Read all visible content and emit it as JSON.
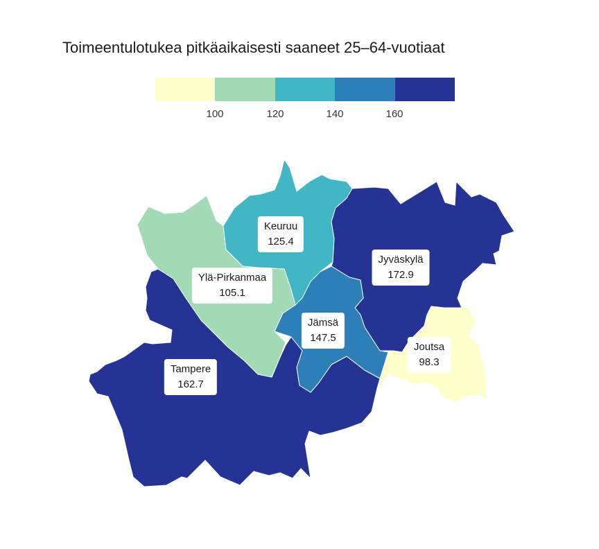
{
  "title": "Toimeentulotukea pitkäaikaisesti saaneet 25–64-vuotiaat",
  "legend": {
    "colors": [
      "#ffffcc",
      "#a1dab4",
      "#41b6c4",
      "#2c7fb8",
      "#253494"
    ],
    "ticks": [
      "100",
      "120",
      "140",
      "160"
    ]
  },
  "regions": [
    {
      "id": "ylapirkanmaa",
      "name": "Ylä-Pirkanmaa",
      "value": "105.1",
      "color": "#a1dab4"
    },
    {
      "id": "keuruu",
      "name": "Keuruu",
      "value": "125.4",
      "color": "#41b6c4"
    },
    {
      "id": "jyvaskyla",
      "name": "Jyväskylä",
      "value": "172.9",
      "color": "#253494"
    },
    {
      "id": "jamsa",
      "name": "Jämsä",
      "value": "147.5",
      "color": "#2c7fb8"
    },
    {
      "id": "tampere",
      "name": "Tampere",
      "value": "162.7",
      "color": "#253494"
    },
    {
      "id": "joutsa",
      "name": "Joutsa",
      "value": "98.3",
      "color": "#ffffcc"
    }
  ]
}
